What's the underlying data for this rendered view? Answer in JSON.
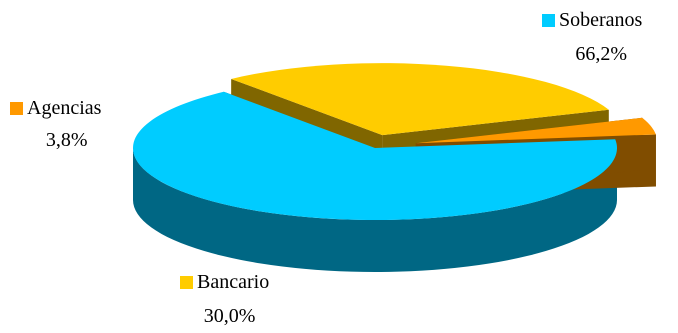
{
  "chart_data": {
    "type": "pie",
    "title": "",
    "categories": [
      "Soberanos",
      "Bancario",
      "Agencias"
    ],
    "values": [
      66.2,
      30.0,
      3.8
    ],
    "value_labels": [
      "66,2%",
      "30,0%",
      "3,8%"
    ],
    "colors": {
      "Soberanos": {
        "top": "#00CCFF",
        "side": "#006784"
      },
      "Bancario": {
        "top": "#FFCC00",
        "side": "#806600"
      },
      "Agencias": {
        "top": "#FF9900",
        "side": "#804D00"
      }
    },
    "style": "3d-exploded"
  },
  "labels": {
    "soberanos": {
      "name": "Soberanos",
      "pct": "66,2%",
      "color": "#00CCFF"
    },
    "agencias": {
      "name": "Agencias",
      "pct": "3,8%",
      "color": "#FF9900"
    },
    "bancario": {
      "name": "Bancario",
      "pct": "30,0%",
      "color": "#FFCC00"
    }
  }
}
